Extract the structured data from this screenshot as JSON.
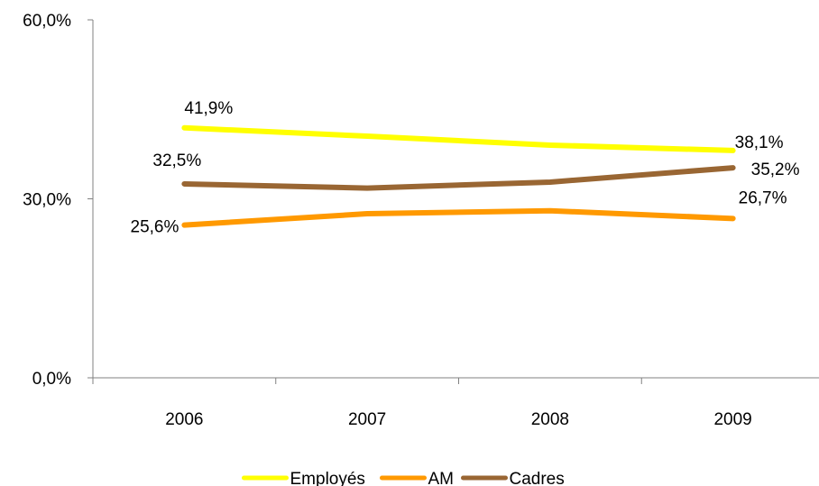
{
  "chart_data": {
    "type": "line",
    "categories": [
      "2006",
      "2007",
      "2008",
      "2009"
    ],
    "yticks": [
      "0,0%",
      "30,0%",
      "60,0%"
    ],
    "ylim": [
      0,
      60
    ],
    "grid": false,
    "legend_position": "bottom",
    "series": [
      {
        "name": "Employés",
        "color": "#ffff00",
        "values": [
          41.9,
          40.5,
          39.0,
          38.1
        ],
        "labels": [
          "41,9%",
          null,
          null,
          "38,1%"
        ]
      },
      {
        "name": "AM",
        "color": "#ff9900",
        "values": [
          25.6,
          27.5,
          28.0,
          26.7
        ],
        "labels": [
          "25,6%",
          null,
          null,
          "26,7%"
        ]
      },
      {
        "name": "Cadres",
        "color": "#996633",
        "values": [
          32.5,
          31.8,
          32.8,
          35.2
        ],
        "labels": [
          "32,5%",
          null,
          null,
          "35,2%"
        ]
      }
    ]
  }
}
